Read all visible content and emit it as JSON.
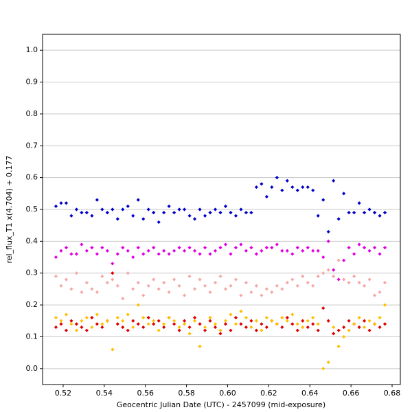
{
  "chart_data": {
    "type": "scatter",
    "x_label": "Geocentric Julian Date (UTC) - 2457099 (mid-exposure)",
    "y_label": "rel_flux_T1 x(4.704) + 0.177",
    "xlim": [
      0.51,
      0.684
    ],
    "ylim": [
      -0.05,
      1.05
    ],
    "xticks": [
      0.52,
      0.54,
      0.56,
      0.58,
      {
        "value": 0.6,
        "label": "0.60"
      },
      0.62,
      0.64,
      0.66,
      0.68
    ],
    "yticks": [
      {
        "value": 0,
        "label": "0.0"
      },
      0.1,
      0.2,
      0.3,
      0.4,
      0.5,
      0.6,
      0.7,
      0.8,
      0.9,
      {
        "value": 1,
        "label": "1.0"
      }
    ],
    "grid": true,
    "x": [
      0.5165,
      0.519,
      0.5215,
      0.524,
      0.5265,
      0.529,
      0.5315,
      0.534,
      0.5365,
      0.539,
      0.5415,
      0.544,
      0.5465,
      0.549,
      0.5515,
      0.554,
      0.5565,
      0.559,
      0.5615,
      0.564,
      0.5665,
      0.569,
      0.5715,
      0.574,
      0.5765,
      0.579,
      0.5815,
      0.584,
      0.5865,
      0.589,
      0.5915,
      0.594,
      0.5965,
      0.599,
      0.6015,
      0.604,
      0.6065,
      0.609,
      0.6115,
      0.614,
      0.6165,
      0.619,
      0.6215,
      0.624,
      0.6265,
      0.629,
      0.6315,
      0.634,
      0.6365,
      0.639,
      0.6415,
      0.644,
      0.6465,
      0.649,
      0.6515,
      0.654,
      0.6565,
      0.659,
      0.6615,
      0.664,
      0.6665,
      0.669,
      0.6715,
      0.674,
      0.6765
    ],
    "series": [
      {
        "color": "#0000cc",
        "values": [
          0.51,
          0.52,
          0.52,
          0.48,
          0.5,
          0.49,
          0.49,
          0.48,
          0.53,
          0.5,
          0.49,
          0.5,
          0.47,
          0.5,
          0.51,
          0.48,
          0.53,
          0.47,
          0.5,
          0.49,
          0.46,
          0.49,
          0.51,
          0.49,
          0.5,
          0.5,
          0.48,
          0.47,
          0.5,
          0.48,
          0.49,
          0.5,
          0.49,
          0.51,
          0.49,
          0.48,
          0.5,
          0.49,
          0.49,
          0.57,
          0.58,
          0.54,
          0.57,
          0.6,
          0.56,
          0.59,
          0.57,
          0.56,
          0.57,
          0.57,
          0.56,
          0.48,
          0.53,
          0.43,
          0.59,
          0.47,
          0.55,
          0.49,
          0.49,
          0.52,
          0.49,
          0.5,
          0.49,
          0.48,
          0.49
        ]
      },
      {
        "color": "#e000e0",
        "values": [
          0.35,
          0.37,
          0.38,
          0.36,
          0.36,
          0.39,
          0.37,
          0.38,
          0.36,
          0.38,
          0.37,
          0.33,
          0.36,
          0.38,
          0.37,
          0.35,
          0.38,
          0.36,
          0.37,
          0.38,
          0.36,
          0.37,
          0.36,
          0.37,
          0.38,
          0.37,
          0.38,
          0.37,
          0.36,
          0.38,
          0.36,
          0.37,
          0.38,
          0.39,
          0.36,
          0.38,
          0.39,
          0.37,
          0.38,
          0.36,
          0.37,
          0.38,
          0.38,
          0.39,
          0.37,
          0.37,
          0.36,
          0.38,
          0.37,
          0.38,
          0.37,
          0.37,
          0.35,
          0.4,
          0.31,
          0.28,
          0.34,
          0.38,
          0.36,
          0.39,
          0.38,
          0.37,
          0.38,
          0.36,
          0.38
        ]
      },
      {
        "color": "#f4a8a8",
        "values": [
          0.29,
          0.26,
          0.28,
          0.25,
          0.3,
          0.24,
          0.27,
          0.25,
          0.24,
          0.29,
          0.27,
          0.28,
          0.26,
          0.22,
          0.3,
          0.25,
          0.27,
          0.23,
          0.26,
          0.28,
          0.25,
          0.27,
          0.24,
          0.28,
          0.26,
          0.23,
          0.29,
          0.25,
          0.28,
          0.26,
          0.24,
          0.27,
          0.29,
          0.25,
          0.26,
          0.28,
          0.23,
          0.27,
          0.24,
          0.26,
          0.23,
          0.25,
          0.24,
          0.26,
          0.25,
          0.27,
          0.28,
          0.26,
          0.29,
          0.27,
          0.26,
          0.29,
          0.3,
          0.31,
          0.29,
          0.34,
          0.28,
          0.27,
          0.29,
          0.27,
          0.26,
          0.28,
          0.23,
          0.24,
          0.27
        ]
      },
      {
        "color": "#dd0000",
        "values": [
          0.13,
          0.14,
          0.12,
          0.15,
          0.14,
          0.13,
          0.12,
          0.16,
          0.14,
          0.13,
          0.15,
          0.3,
          0.14,
          0.13,
          0.12,
          0.15,
          0.14,
          0.13,
          0.16,
          0.14,
          0.15,
          0.13,
          0.16,
          0.14,
          0.12,
          0.15,
          0.13,
          0.16,
          0.14,
          0.12,
          0.15,
          0.13,
          0.11,
          0.14,
          0.12,
          0.16,
          0.14,
          0.13,
          0.15,
          0.12,
          0.14,
          0.13,
          0.15,
          0.14,
          0.13,
          0.16,
          0.14,
          0.12,
          0.15,
          0.13,
          0.14,
          0.12,
          0.19,
          0.15,
          0.11,
          0.12,
          0.13,
          0.15,
          0.14,
          0.13,
          0.15,
          0.12,
          0.14,
          0.13,
          0.14
        ]
      },
      {
        "color": "#ffbf00",
        "values": [
          0.16,
          0.15,
          0.17,
          0.14,
          0.12,
          0.15,
          0.16,
          0.13,
          0.17,
          0.14,
          0.15,
          0.06,
          0.16,
          0.15,
          0.17,
          0.13,
          0.2,
          0.16,
          0.14,
          0.15,
          0.12,
          0.14,
          0.16,
          0.15,
          0.13,
          0.14,
          0.11,
          0.15,
          0.07,
          0.13,
          0.16,
          0.14,
          0.12,
          0.15,
          0.17,
          0.14,
          0.18,
          0.16,
          0.13,
          0.15,
          0.12,
          0.16,
          0.15,
          0.14,
          0.16,
          0.15,
          0.17,
          0.14,
          0.13,
          0.15,
          0.16,
          0.14,
          0.0,
          0.02,
          0.13,
          0.07,
          0.1,
          0.12,
          0.14,
          0.16,
          0.13,
          0.15,
          0.14,
          0.16,
          0.2
        ]
      }
    ]
  }
}
